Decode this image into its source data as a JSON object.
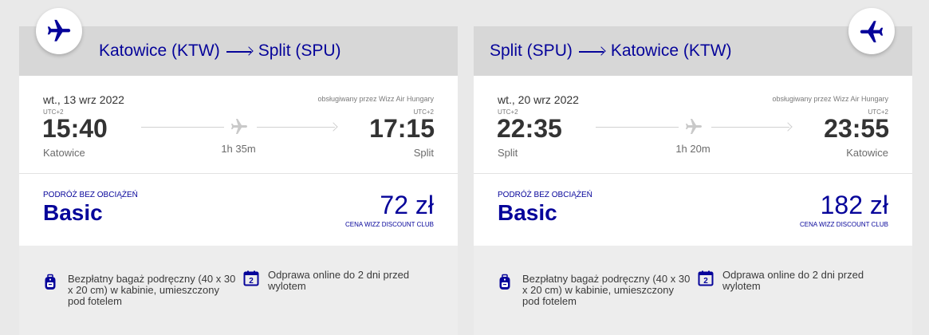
{
  "flights": [
    {
      "route_from": "Katowice (KTW)",
      "route_to": "Split (SPU)",
      "date": "wt., 13 wrz 2022",
      "operator": "obsługiwany przez Wizz Air Hungary",
      "dep_utc": "UTC+2",
      "arr_utc": "UTC+2",
      "dep_time": "15:40",
      "arr_time": "17:15",
      "dep_city": "Katowice",
      "arr_city": "Split",
      "duration": "1h 35m",
      "fare_label": "PODRÓŻ BEZ OBCIĄŻEŃ",
      "fare_name": "Basic",
      "price": "72 zł",
      "price_note": "CENA WIZZ DISCOUNT CLUB",
      "benefit_bag": "Bezpłatny bagaż podręczny (40 x 30 x 20 cm) w kabinie, umieszczony pod fotelem",
      "benefit_checkin": "Odprawa online do 2 dni przed wylotem",
      "calendar_number": "2"
    },
    {
      "route_from": "Split (SPU)",
      "route_to": "Katowice (KTW)",
      "date": "wt., 20 wrz 2022",
      "operator": "obsługiwany przez Wizz Air Hungary",
      "dep_utc": "UTC+2",
      "arr_utc": "UTC+2",
      "dep_time": "22:35",
      "arr_time": "23:55",
      "dep_city": "Split",
      "arr_city": "Katowice",
      "duration": "1h 20m",
      "fare_label": "PODRÓŻ BEZ OBCIĄŻEŃ",
      "fare_name": "Basic",
      "price": "182 zł",
      "price_note": "CENA WIZZ DISCOUNT CLUB",
      "benefit_bag": "Bezpłatny bagaż podręczny (40 x 30 x 20 cm) w kabinie, umieszczony pod fotelem",
      "benefit_checkin": "Odprawa online do 2 dni przed wylotem",
      "calendar_number": "2"
    }
  ],
  "colors": {
    "brand": "#06049a",
    "header_bg": "#d7d7d7",
    "benefits_bg": "#ededed",
    "page_bg": "#e9e9e9"
  },
  "icons": {
    "badge": "airplane-icon",
    "mid": "airplane-icon",
    "bag": "backpack-icon",
    "checkin": "calendar-icon"
  }
}
